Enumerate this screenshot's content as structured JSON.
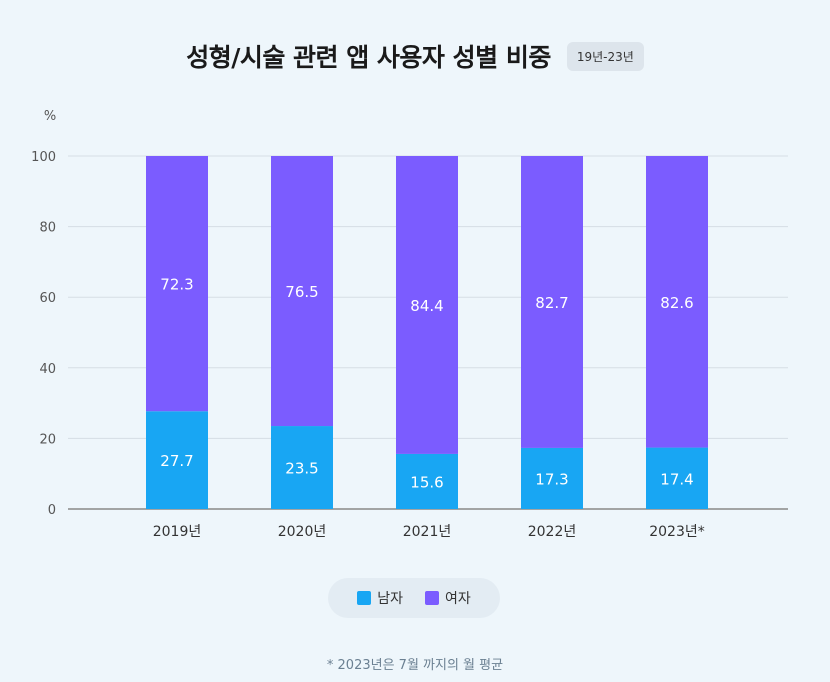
{
  "header": {
    "title": "성형/시술 관련 앱 사용자 성별 비중",
    "period_badge": "19년-23년"
  },
  "chart_data": {
    "type": "bar",
    "stacked": true,
    "categories": [
      "2019년",
      "2020년",
      "2021년",
      "2022년",
      "2023년*"
    ],
    "series": [
      {
        "name": "남자",
        "values": [
          27.7,
          23.5,
          15.6,
          17.3,
          17.4
        ],
        "color": "#18a6f3"
      },
      {
        "name": "여자",
        "values": [
          72.3,
          76.5,
          84.4,
          82.7,
          82.6
        ],
        "color": "#7b5cff"
      }
    ],
    "ylabel": "%",
    "ylim": [
      0,
      100
    ],
    "yticks": [
      0,
      20,
      40,
      60,
      80,
      100
    ],
    "grid": true,
    "legend_position": "bottom"
  },
  "footnote": "* 2023년은 7월 까지의 월 평균"
}
